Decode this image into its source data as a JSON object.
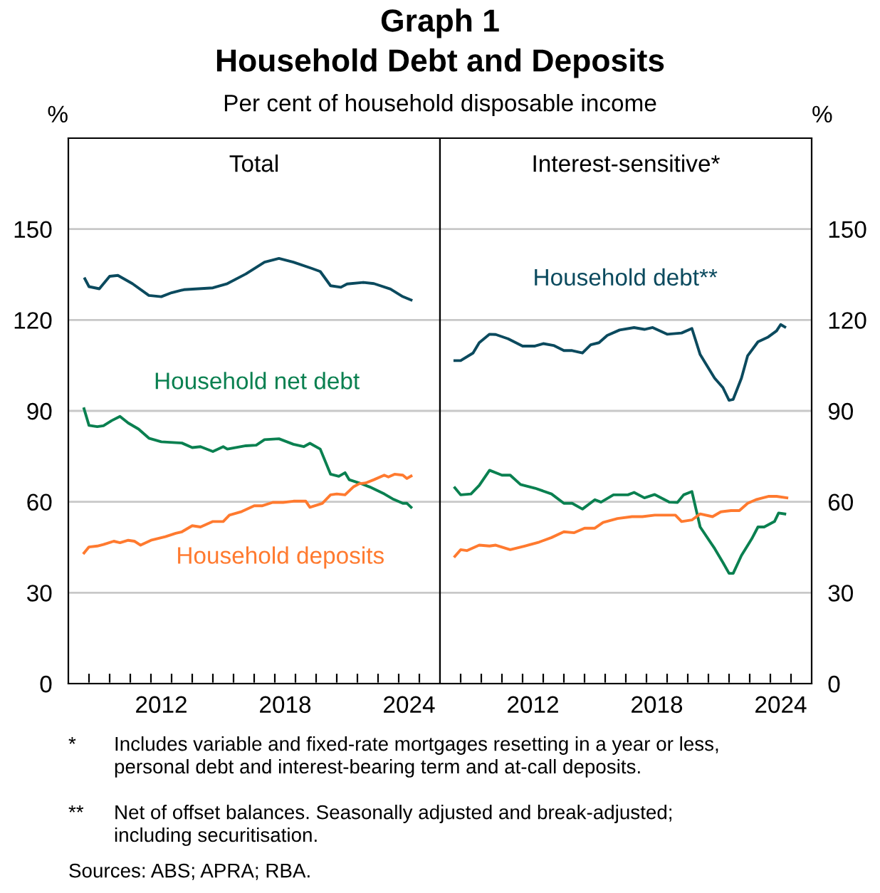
{
  "chart_data": [
    {
      "type": "line",
      "title": "Total",
      "ylabel": "%",
      "xlim": [
        2008,
        2026
      ],
      "ylim": [
        0,
        180
      ],
      "yticks": [
        0,
        30,
        60,
        90,
        120,
        150
      ],
      "xticks": [
        {
          "value": 2009,
          "label": null
        },
        {
          "value": 2010,
          "label": null
        },
        {
          "value": 2011,
          "label": null
        },
        {
          "value": 2012,
          "label": null
        },
        {
          "value": 2013,
          "label": null
        },
        {
          "value": 2014,
          "label": null
        },
        {
          "value": 2015,
          "label": null
        },
        {
          "value": 2016,
          "label": null
        },
        {
          "value": 2017,
          "label": null
        },
        {
          "value": 2018,
          "label": null
        },
        {
          "value": 2019,
          "label": null
        },
        {
          "value": 2020,
          "label": null
        },
        {
          "value": 2021,
          "label": null
        },
        {
          "value": 2022,
          "label": null
        },
        {
          "value": 2023,
          "label": null
        },
        {
          "value": 2024,
          "label": null
        },
        {
          "value": 2025,
          "label": null
        },
        {
          "value": 2012.5,
          "label": "2012"
        },
        {
          "value": 2018.5,
          "label": "2018"
        },
        {
          "value": 2024.5,
          "label": "2024"
        }
      ],
      "grid": "y",
      "tick_labels": "xy",
      "legend": false,
      "annotations": [
        "Graph 1",
        "Household Debt and Deposits",
        "Per cent of household disposable income",
        "*",
        "Includes variable and fixed-rate mortgages resetting in a year or less,\npersonal debt and interest-bearing term and at-call deposits.",
        "**",
        "Net of offset balances. Seasonally adjusted and break-adjusted;\nincluding securitisation.",
        "Sources: ABS; APRA; RBA."
      ],
      "series": [
        {
          "color": "#0b4a5e",
          "x": [
            2008.8,
            2009.0,
            2009.5,
            2010.0,
            2010.4,
            2011.1,
            2011.9,
            2012.5,
            2013.0,
            2013.6,
            2015.0,
            2015.7,
            2016.6,
            2017.5,
            2018.2,
            2018.9,
            2019.8,
            2020.2,
            2020.7,
            2021.2,
            2021.5,
            2022.3,
            2022.8,
            2023.6,
            2024.2,
            2024.6
          ],
          "values": [
            133.6,
            131,
            130.3,
            134.4,
            134.7,
            132,
            128.1,
            127.7,
            129,
            130,
            130.6,
            132,
            135.2,
            139.1,
            140.3,
            139.1,
            137,
            136,
            131.3,
            130.8,
            131.9,
            132.4,
            132,
            130.2,
            127.7,
            126.6
          ]
        },
        {
          "name": "Household net debt",
          "color": "#0a8050",
          "x": [
            2008.76,
            2009.0,
            2009.4,
            2009.7,
            2010.1,
            2010.5,
            2010.9,
            2011.4,
            2011.9,
            2012.5,
            2013.5,
            2014.0,
            2014.4,
            2015.0,
            2015.5,
            2015.7,
            2016.6,
            2017.1,
            2017.5,
            2018.2,
            2018.9,
            2019.4,
            2019.7,
            2020.2,
            2020.7,
            2021.1,
            2021.4,
            2021.6,
            2022.1,
            2022.6,
            2023.3,
            2023.7,
            2024.2,
            2024.4,
            2024.6
          ],
          "values": [
            90.7,
            85.2,
            84.8,
            85.1,
            86.8,
            88.2,
            86,
            84,
            81,
            79.8,
            79.4,
            77.9,
            78.2,
            76.6,
            78.2,
            77.4,
            78.5,
            78.7,
            80.5,
            80.8,
            79,
            78.2,
            79.3,
            77.4,
            69.1,
            68.4,
            69.6,
            67.3,
            66.2,
            64.9,
            62.6,
            61,
            59.5,
            59.5,
            58.2
          ]
        },
        {
          "name": "Household deposits",
          "color": "#ff7a2f",
          "x": [
            2008.76,
            2009.0,
            2009.4,
            2009.7,
            2010.2,
            2010.5,
            2010.9,
            2011.2,
            2011.5,
            2012.0,
            2012.7,
            2013.2,
            2013.5,
            2014.0,
            2014.4,
            2015.0,
            2015.5,
            2015.8,
            2016.4,
            2017.0,
            2017.4,
            2017.9,
            2018.4,
            2018.9,
            2019.5,
            2019.7,
            2020.3,
            2020.7,
            2021.0,
            2021.4,
            2021.8,
            2022.1,
            2022.4,
            2022.8,
            2023.3,
            2023.5,
            2023.8,
            2024.2,
            2024.4,
            2024.6
          ],
          "values": [
            43.1,
            45.1,
            45.4,
            45.9,
            47,
            46.5,
            47.3,
            47,
            45.7,
            47.3,
            48.5,
            49.6,
            50.1,
            52.1,
            51.7,
            53.5,
            53.5,
            55.6,
            56.8,
            58.7,
            58.7,
            59.8,
            59.8,
            60.2,
            60.2,
            58.2,
            59.5,
            62.3,
            62.6,
            62.3,
            64.9,
            66,
            66.2,
            67.3,
            68.8,
            68.2,
            69.1,
            68.8,
            67.7,
            68.5
          ]
        }
      ]
    },
    {
      "type": "line",
      "title": "Interest-sensitive*",
      "ylabel": "%",
      "xlim": [
        2008,
        2026
      ],
      "ylim": [
        0,
        180
      ],
      "yticks": [
        0,
        30,
        60,
        90,
        120,
        150
      ],
      "xticks": [
        {
          "value": 2009,
          "label": null
        },
        {
          "value": 2010,
          "label": null
        },
        {
          "value": 2011,
          "label": null
        },
        {
          "value": 2012,
          "label": null
        },
        {
          "value": 2013,
          "label": null
        },
        {
          "value": 2014,
          "label": null
        },
        {
          "value": 2015,
          "label": null
        },
        {
          "value": 2016,
          "label": null
        },
        {
          "value": 2017,
          "label": null
        },
        {
          "value": 2018,
          "label": null
        },
        {
          "value": 2019,
          "label": null
        },
        {
          "value": 2020,
          "label": null
        },
        {
          "value": 2021,
          "label": null
        },
        {
          "value": 2022,
          "label": null
        },
        {
          "value": 2023,
          "label": null
        },
        {
          "value": 2024,
          "label": null
        },
        {
          "value": 2025,
          "label": null
        },
        {
          "value": 2012.5,
          "label": "2012"
        },
        {
          "value": 2018.5,
          "label": "2018"
        },
        {
          "value": 2024.5,
          "label": "2024"
        }
      ],
      "grid": "y",
      "legend": false,
      "series": [
        {
          "name": "Household debt**",
          "color": "#0b4a5e",
          "x": [
            2008.72,
            2009.0,
            2009.6,
            2009.9,
            2010.4,
            2010.7,
            2011.3,
            2012.0,
            2012.6,
            2013.0,
            2013.5,
            2014.0,
            2014.4,
            2014.9,
            2015.3,
            2015.7,
            2016.1,
            2016.7,
            2017.4,
            2017.9,
            2018.3,
            2019.0,
            2019.7,
            2020.2,
            2020.6,
            2021.3,
            2021.7,
            2022.0,
            2022.2,
            2022.6,
            2022.9,
            2023.4,
            2023.9,
            2024.3,
            2024.5,
            2024.7
          ],
          "values": [
            106.6,
            106.6,
            109.1,
            112.5,
            115.3,
            115.2,
            113.8,
            111.4,
            111.4,
            112.2,
            111.6,
            109.9,
            109.9,
            109.1,
            111.8,
            112.5,
            114.9,
            116.7,
            117.5,
            116.9,
            117.5,
            115.3,
            115.7,
            117.2,
            108.6,
            100.8,
            97.7,
            93.5,
            93.8,
            100.8,
            108.2,
            112.8,
            114.4,
            116.4,
            118.5,
            117.7
          ]
        },
        {
          "color": "#0a8050",
          "x": [
            2008.72,
            2009.0,
            2009.5,
            2009.9,
            2010.4,
            2011.0,
            2011.4,
            2011.9,
            2012.6,
            2013.4,
            2014.0,
            2014.4,
            2014.9,
            2015.5,
            2015.8,
            2016.4,
            2017.1,
            2017.4,
            2017.9,
            2018.4,
            2019.1,
            2019.5,
            2019.8,
            2020.2,
            2020.6,
            2021.3,
            2021.7,
            2022.0,
            2022.2,
            2022.6,
            2023.1,
            2023.4,
            2023.7,
            2024.2,
            2024.4,
            2024.7
          ],
          "values": [
            64.6,
            62.3,
            62.6,
            65.4,
            70.4,
            68.8,
            68.8,
            65.7,
            64.5,
            62.6,
            59.5,
            59.5,
            57.6,
            60.7,
            59.9,
            62.3,
            62.3,
            63.1,
            61.3,
            62.4,
            59.9,
            59.8,
            62.3,
            63.4,
            51.7,
            44.6,
            40,
            36.4,
            36.4,
            42.3,
            47.8,
            51.7,
            51.7,
            53.5,
            56.3,
            56
          ]
        },
        {
          "color": "#ff7a2f",
          "x": [
            2008.72,
            2009.0,
            2009.3,
            2009.9,
            2010.4,
            2010.7,
            2011.4,
            2012.1,
            2012.8,
            2013.4,
            2014.0,
            2014.5,
            2015.0,
            2015.5,
            2015.9,
            2016.6,
            2017.3,
            2017.8,
            2018.4,
            2019.4,
            2019.7,
            2020.2,
            2020.6,
            2021.2,
            2021.6,
            2022.1,
            2022.5,
            2022.9,
            2023.3,
            2023.9,
            2024.3,
            2024.8
          ],
          "values": [
            42,
            44.2,
            43.9,
            45.7,
            45.4,
            45.7,
            44.2,
            45.4,
            46.7,
            48.2,
            50.1,
            49.8,
            51.3,
            51.3,
            53.2,
            54.5,
            55.1,
            55.1,
            55.6,
            55.6,
            53.5,
            54,
            56,
            55.1,
            56.7,
            57.1,
            57.1,
            59.5,
            60.7,
            61.8,
            61.8,
            61.3
          ]
        }
      ]
    }
  ]
}
